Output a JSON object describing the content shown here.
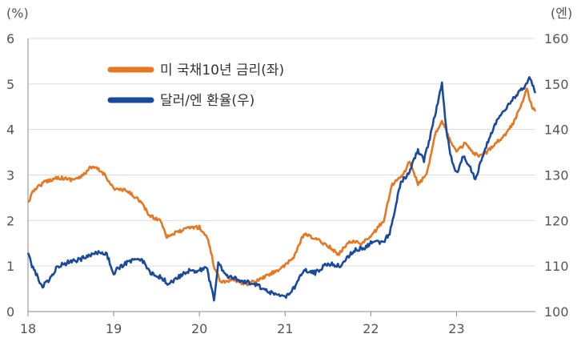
{
  "chart_data": {
    "type": "line",
    "left_axis": {
      "unit": "(%)",
      "min": 0,
      "max": 6,
      "ticks": [
        "0",
        "1",
        "2",
        "3",
        "4",
        "5",
        "6"
      ]
    },
    "right_axis": {
      "unit": "(엔)",
      "min": 100,
      "max": 160,
      "ticks": [
        "100",
        "110",
        "120",
        "130",
        "140",
        "150",
        "160"
      ]
    },
    "x_axis": {
      "min": 2018.0,
      "max": 2023.92,
      "ticks": [
        {
          "x": 2018,
          "label": "18"
        },
        {
          "x": 2019,
          "label": "19"
        },
        {
          "x": 2020,
          "label": "20"
        },
        {
          "x": 2021,
          "label": "21"
        },
        {
          "x": 2022,
          "label": "22"
        },
        {
          "x": 2023,
          "label": "23"
        }
      ]
    },
    "grid": "horizontal",
    "legend_placement": "top-left",
    "series": [
      {
        "name": "미 국채10년 금리(좌)",
        "axis": "left",
        "color": "#E87722",
        "points": [
          [
            2018.0,
            2.4
          ],
          [
            2018.08,
            2.7
          ],
          [
            2018.2,
            2.85
          ],
          [
            2018.35,
            2.95
          ],
          [
            2018.5,
            2.9
          ],
          [
            2018.62,
            2.95
          ],
          [
            2018.72,
            3.15
          ],
          [
            2018.8,
            3.15
          ],
          [
            2018.9,
            3.0
          ],
          [
            2019.0,
            2.7
          ],
          [
            2019.15,
            2.65
          ],
          [
            2019.3,
            2.45
          ],
          [
            2019.42,
            2.1
          ],
          [
            2019.55,
            2.0
          ],
          [
            2019.62,
            1.65
          ],
          [
            2019.75,
            1.75
          ],
          [
            2019.9,
            1.85
          ],
          [
            2020.0,
            1.85
          ],
          [
            2020.1,
            1.6
          ],
          [
            2020.17,
            1.0
          ],
          [
            2020.25,
            0.65
          ],
          [
            2020.4,
            0.7
          ],
          [
            2020.55,
            0.6
          ],
          [
            2020.7,
            0.7
          ],
          [
            2020.85,
            0.85
          ],
          [
            2021.0,
            1.0
          ],
          [
            2021.1,
            1.2
          ],
          [
            2021.22,
            1.7
          ],
          [
            2021.35,
            1.6
          ],
          [
            2021.5,
            1.45
          ],
          [
            2021.62,
            1.25
          ],
          [
            2021.75,
            1.55
          ],
          [
            2021.9,
            1.5
          ],
          [
            2022.0,
            1.65
          ],
          [
            2022.15,
            2.0
          ],
          [
            2022.25,
            2.8
          ],
          [
            2022.38,
            3.0
          ],
          [
            2022.45,
            3.3
          ],
          [
            2022.55,
            2.8
          ],
          [
            2022.65,
            3.0
          ],
          [
            2022.75,
            3.9
          ],
          [
            2022.83,
            4.2
          ],
          [
            2022.92,
            3.8
          ],
          [
            2023.0,
            3.5
          ],
          [
            2023.1,
            3.7
          ],
          [
            2023.18,
            3.5
          ],
          [
            2023.27,
            3.4
          ],
          [
            2023.35,
            3.5
          ],
          [
            2023.45,
            3.7
          ],
          [
            2023.55,
            3.85
          ],
          [
            2023.65,
            4.1
          ],
          [
            2023.75,
            4.5
          ],
          [
            2023.82,
            4.9
          ],
          [
            2023.88,
            4.5
          ],
          [
            2023.92,
            4.4
          ]
        ]
      },
      {
        "name": "달러/엔 환율(우)",
        "axis": "right",
        "color": "#1A4A9E",
        "points": [
          [
            2018.0,
            112.5
          ],
          [
            2018.07,
            109.0
          ],
          [
            2018.17,
            105.5
          ],
          [
            2018.25,
            107.0
          ],
          [
            2018.35,
            110.0
          ],
          [
            2018.5,
            111.0
          ],
          [
            2018.62,
            111.5
          ],
          [
            2018.72,
            112.5
          ],
          [
            2018.8,
            113.0
          ],
          [
            2018.92,
            112.5
          ],
          [
            2019.0,
            108.5
          ],
          [
            2019.08,
            110.0
          ],
          [
            2019.2,
            111.0
          ],
          [
            2019.33,
            111.5
          ],
          [
            2019.42,
            108.5
          ],
          [
            2019.55,
            107.5
          ],
          [
            2019.65,
            106.0
          ],
          [
            2019.75,
            107.5
          ],
          [
            2019.88,
            109.0
          ],
          [
            2020.0,
            109.0
          ],
          [
            2020.08,
            110.0
          ],
          [
            2020.17,
            102.5
          ],
          [
            2020.22,
            111.0
          ],
          [
            2020.3,
            108.0
          ],
          [
            2020.45,
            107.0
          ],
          [
            2020.55,
            106.5
          ],
          [
            2020.7,
            105.5
          ],
          [
            2020.85,
            104.0
          ],
          [
            2020.95,
            103.5
          ],
          [
            2021.0,
            103.0
          ],
          [
            2021.1,
            105.0
          ],
          [
            2021.22,
            109.0
          ],
          [
            2021.35,
            108.5
          ],
          [
            2021.5,
            110.5
          ],
          [
            2021.65,
            110.0
          ],
          [
            2021.8,
            113.5
          ],
          [
            2021.92,
            114.0
          ],
          [
            2022.0,
            115.0
          ],
          [
            2022.15,
            115.5
          ],
          [
            2022.22,
            117.0
          ],
          [
            2022.28,
            122.5
          ],
          [
            2022.35,
            128.5
          ],
          [
            2022.45,
            130.5
          ],
          [
            2022.55,
            135.5
          ],
          [
            2022.62,
            133.0
          ],
          [
            2022.7,
            139.0
          ],
          [
            2022.77,
            145.0
          ],
          [
            2022.83,
            150.0
          ],
          [
            2022.88,
            140.0
          ],
          [
            2022.95,
            132.5
          ],
          [
            2023.0,
            130.5
          ],
          [
            2023.08,
            134.0
          ],
          [
            2023.15,
            132.0
          ],
          [
            2023.22,
            129.0
          ],
          [
            2023.3,
            134.0
          ],
          [
            2023.38,
            138.0
          ],
          [
            2023.47,
            142.0
          ],
          [
            2023.55,
            144.0
          ],
          [
            2023.65,
            146.5
          ],
          [
            2023.72,
            148.0
          ],
          [
            2023.8,
            149.5
          ],
          [
            2023.85,
            151.5
          ],
          [
            2023.92,
            148.0
          ]
        ]
      }
    ]
  }
}
